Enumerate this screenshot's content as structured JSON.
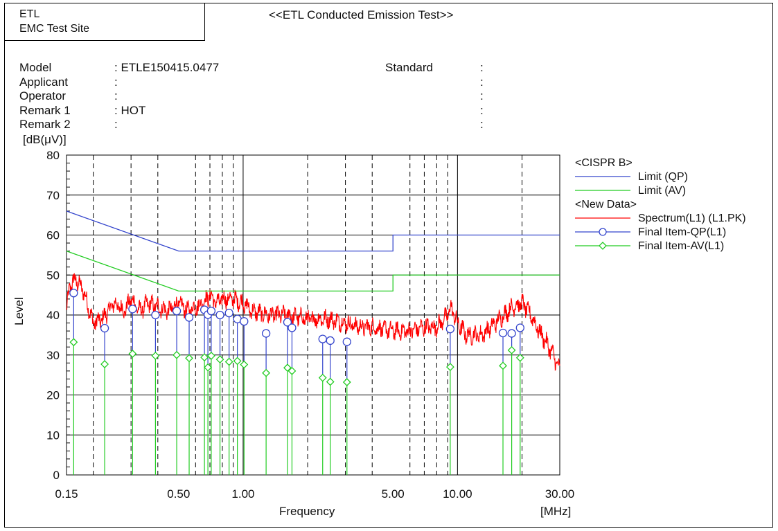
{
  "header": {
    "site_line1": "ETL",
    "site_line2": "EMC Test Site",
    "title": "<<ETL Conducted Emission Test>>"
  },
  "info": {
    "labels": [
      "Model",
      "Applicant",
      "Operator",
      "Remark 1",
      "Remark 2"
    ],
    "values": [
      ": ETLE150415.0477",
      ":",
      ":",
      ": HOT",
      ":"
    ],
    "standard_label": "Standard",
    "right_colons": [
      ":",
      ":",
      ":",
      ":",
      ":"
    ]
  },
  "chart_data": {
    "type": "line",
    "xlabel": "Frequency",
    "ylabel": "Level",
    "x_unit": "[MHz]",
    "y_unit": "[dB(μV)]",
    "x_scale": "log",
    "xlim": [
      0.15,
      30.0
    ],
    "ylim": [
      0,
      80
    ],
    "x_tick_labels": [
      "0.15",
      "0.50",
      "1.00",
      "5.00",
      "10.00",
      "30.00"
    ],
    "x_ticks": [
      0.15,
      0.5,
      1.0,
      5.0,
      10.0,
      30.0
    ],
    "y_ticks": [
      0,
      10,
      20,
      30,
      40,
      50,
      60,
      70,
      80
    ],
    "minor_x_dashed": [
      0.2,
      0.3,
      0.4,
      0.6,
      0.7,
      0.8,
      0.9,
      2.0,
      3.0,
      4.0,
      6.0,
      7.0,
      8.0,
      9.0,
      20.0
    ],
    "grid": true,
    "legend": {
      "placement": "right",
      "groups": [
        {
          "heading": "<CISPR B>",
          "entries": [
            {
              "label": "Limit (QP)",
              "color": "#3344cc",
              "marker": "none"
            },
            {
              "label": "Limit (AV)",
              "color": "#22cc22",
              "marker": "none"
            }
          ]
        },
        {
          "heading": "<New Data>",
          "entries": [
            {
              "label": "Spectrum(L1) (L1.PK)",
              "color": "#ff0000",
              "marker": "none"
            },
            {
              "label": "Final Item-QP(L1)",
              "color": "#3344cc",
              "marker": "circle"
            },
            {
              "label": "Final Item-AV(L1)",
              "color": "#22cc22",
              "marker": "diamond"
            }
          ]
        }
      ]
    },
    "series": [
      {
        "name": "Limit (QP)",
        "color": "#3344cc",
        "x": [
          0.15,
          0.5,
          0.5,
          5.0,
          5.0,
          30.0
        ],
        "y": [
          66,
          56,
          56,
          56,
          60,
          60
        ]
      },
      {
        "name": "Limit (AV)",
        "color": "#22cc22",
        "x": [
          0.15,
          0.5,
          0.5,
          5.0,
          5.0,
          30.0
        ],
        "y": [
          56,
          46,
          46,
          46,
          50,
          50
        ]
      },
      {
        "name": "Spectrum(L1) (L1.PK)",
        "color": "#ff0000",
        "x": [
          0.15,
          0.155,
          0.165,
          0.18,
          0.2,
          0.22,
          0.25,
          0.28,
          0.3,
          0.33,
          0.36,
          0.4,
          0.45,
          0.5,
          0.55,
          0.6,
          0.65,
          0.7,
          0.75,
          0.8,
          0.9,
          1.0,
          1.1,
          1.3,
          1.6,
          2.0,
          2.5,
          3.0,
          3.5,
          4.0,
          5.0,
          6.0,
          7.0,
          8.0,
          9.0,
          9.3,
          10.0,
          11.0,
          13.0,
          15.0,
          18.0,
          20.0,
          22.0,
          24.0,
          26.0,
          28.0,
          30.0
        ],
        "y": [
          41,
          47,
          49,
          46,
          38,
          39,
          43,
          41,
          44,
          41,
          43,
          42,
          41,
          43,
          41,
          42,
          43,
          45,
          43,
          44,
          44,
          43,
          41,
          40,
          40,
          39,
          39,
          38,
          37,
          37,
          36,
          36,
          37,
          37,
          40,
          42,
          38,
          35,
          35,
          38,
          42,
          43,
          40,
          36,
          33,
          30,
          26
        ]
      },
      {
        "name": "Final Item-QP(L1)",
        "color": "#3344cc",
        "marker": "circle",
        "x": [
          0.162,
          0.226,
          0.305,
          0.39,
          0.49,
          0.56,
          0.66,
          0.685,
          0.71,
          0.78,
          0.86,
          0.94,
          1.01,
          1.28,
          1.61,
          1.69,
          2.35,
          2.55,
          3.05,
          9.25,
          16.3,
          17.9,
          19.6
        ],
        "y": [
          45.5,
          36.7,
          41.5,
          40.0,
          41.0,
          39.4,
          41.3,
          40.1,
          41.0,
          40.0,
          40.5,
          39.0,
          38.4,
          35.4,
          38.2,
          36.8,
          34.0,
          33.6,
          33.3,
          36.5,
          35.5,
          35.4,
          36.8
        ]
      },
      {
        "name": "Final Item-AV(L1)",
        "color": "#22cc22",
        "marker": "diamond",
        "x": [
          0.162,
          0.226,
          0.305,
          0.39,
          0.49,
          0.56,
          0.66,
          0.685,
          0.71,
          0.78,
          0.86,
          0.94,
          1.01,
          1.28,
          1.61,
          1.69,
          2.35,
          2.55,
          3.05,
          9.25,
          16.3,
          17.9,
          19.6
        ],
        "y": [
          33.2,
          27.7,
          30.3,
          29.8,
          30.0,
          29.2,
          29.4,
          26.9,
          29.8,
          28.9,
          28.3,
          28.5,
          27.6,
          25.5,
          26.8,
          26.0,
          24.3,
          23.3,
          23.2,
          27.0,
          27.3,
          31.2,
          29.3
        ]
      }
    ]
  }
}
